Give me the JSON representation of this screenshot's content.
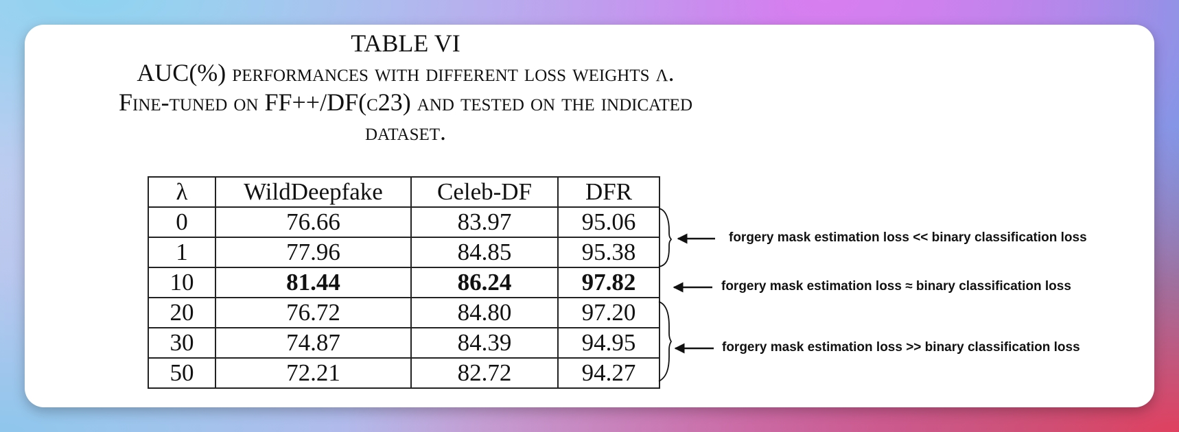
{
  "caption": {
    "title": "TABLE VI",
    "line1": "AUC(%) performances with different loss weights λ.",
    "line2": "Fine-tuned on FF++/DF(c23) and tested on the indicated",
    "line3": "dataset."
  },
  "table": {
    "headers": [
      "λ",
      "WildDeepfake",
      "Celeb-DF",
      "DFR"
    ],
    "rows": [
      [
        "0",
        "76.66",
        "83.97",
        "95.06"
      ],
      [
        "1",
        "77.96",
        "84.85",
        "95.38"
      ],
      [
        "10",
        "81.44",
        "86.24",
        "97.82"
      ],
      [
        "20",
        "76.72",
        "84.80",
        "97.20"
      ],
      [
        "30",
        "74.87",
        "84.39",
        "94.95"
      ],
      [
        "50",
        "72.21",
        "82.72",
        "94.27"
      ]
    ]
  },
  "annotations": {
    "low": "forgery mask estimation loss <<  binary classification loss",
    "equal": "forgery mask estimation loss ≈ binary classification loss",
    "high": "forgery mask estimation loss >> binary classification loss"
  }
}
